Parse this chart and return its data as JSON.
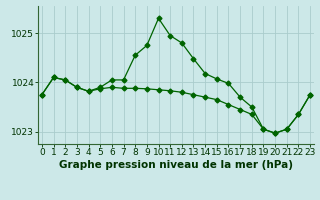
{
  "title": "Graphe pression niveau de la mer (hPa)",
  "background_color": "#cce8e8",
  "grid_color": "#aacccc",
  "line_color_main": "#006400",
  "x_values": [
    0,
    1,
    2,
    3,
    4,
    5,
    6,
    7,
    8,
    9,
    10,
    11,
    12,
    13,
    14,
    15,
    16,
    17,
    18,
    19,
    20,
    21,
    22,
    23
  ],
  "y_values_line1": [
    1023.75,
    1024.1,
    1024.05,
    1023.9,
    1023.82,
    1023.9,
    1024.05,
    1024.05,
    1024.55,
    1024.75,
    1025.3,
    1024.95,
    1024.8,
    1024.48,
    1024.18,
    1024.07,
    1023.98,
    1023.7,
    1023.5,
    1023.05,
    1022.97,
    1023.05,
    1023.35,
    1023.75
  ],
  "y_values_line2": [
    1023.75,
    1024.1,
    1024.05,
    1023.9,
    1023.82,
    1023.87,
    1023.9,
    1023.88,
    1023.88,
    1023.87,
    1023.85,
    1023.83,
    1023.8,
    1023.75,
    1023.7,
    1023.65,
    1023.55,
    1023.45,
    1023.35,
    1023.05,
    1022.97,
    1023.05,
    1023.35,
    1023.75
  ],
  "ylim": [
    1022.75,
    1025.55
  ],
  "yticks": [
    1023,
    1024,
    1025
  ],
  "xlim": [
    -0.3,
    23.3
  ],
  "title_fontsize": 7.5,
  "tick_fontsize": 6.5
}
